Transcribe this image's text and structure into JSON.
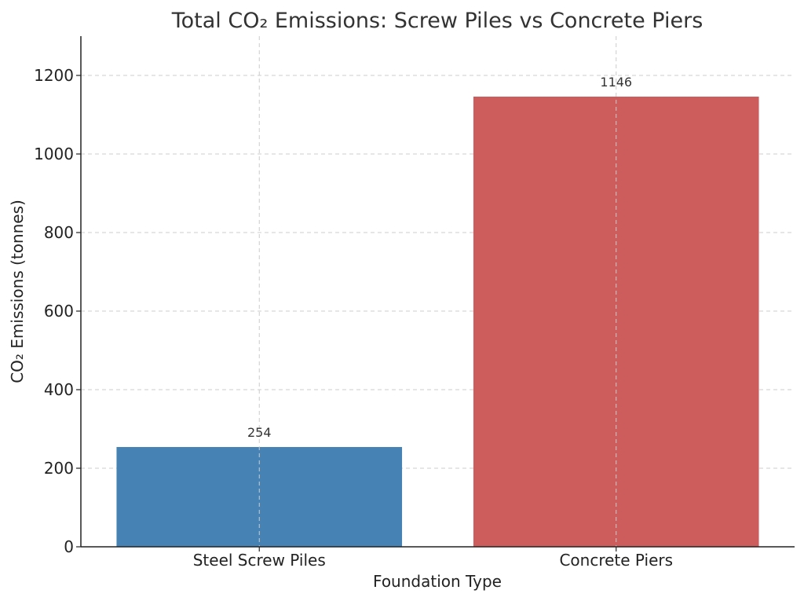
{
  "chart_data": {
    "type": "bar",
    "title": "Total CO₂ Emissions: Screw Piles vs Concrete Piers",
    "xlabel": "Foundation Type",
    "ylabel": "CO₂ Emissions (tonnes)",
    "categories": [
      "Steel Screw Piles",
      "Concrete Piers"
    ],
    "values": [
      254,
      1146
    ],
    "data_labels": [
      "254",
      "1146"
    ],
    "colors": [
      "#4682b4",
      "#cd5c5c"
    ],
    "ylim": [
      0,
      1300
    ],
    "yticks": [
      0,
      200,
      400,
      600,
      800,
      1000,
      1200
    ],
    "grid": true
  }
}
